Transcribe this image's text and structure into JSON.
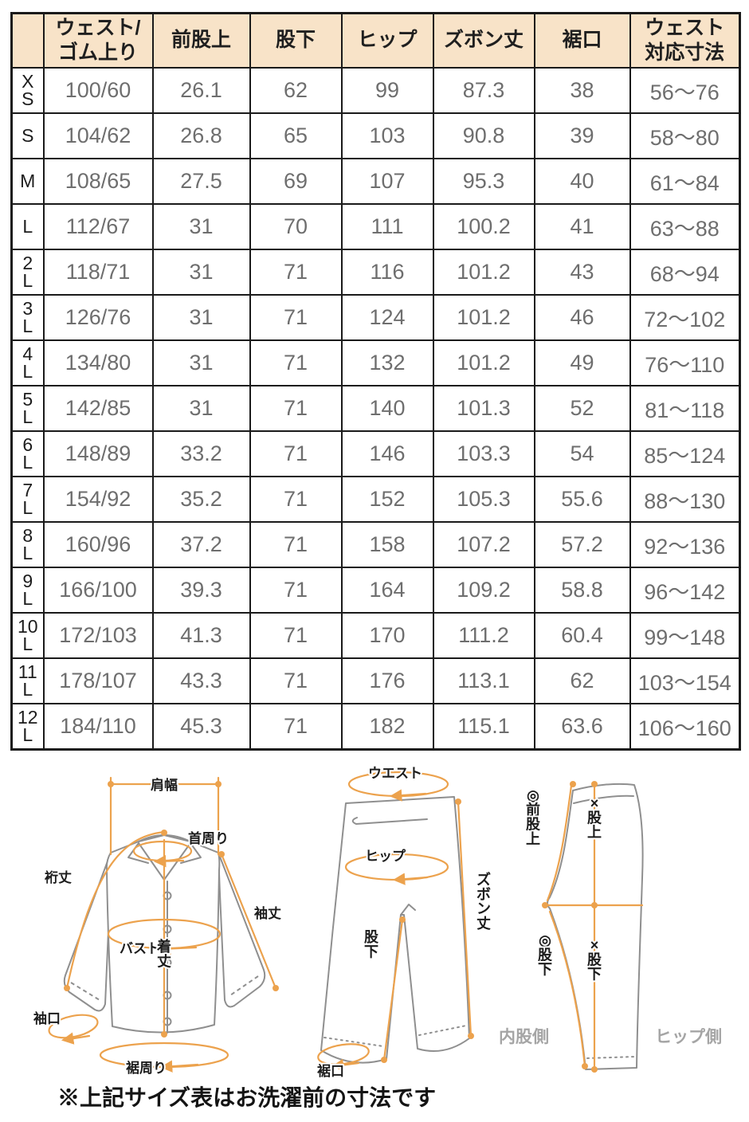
{
  "colors": {
    "header_bg": "#f8e3c8",
    "table_border": "#1a1a1a",
    "data_text": "#6e6e6e",
    "accent_orange": "#eca24d",
    "diagram_gray": "#8f8f8f",
    "side_label_gray": "#a5a5a5"
  },
  "size_table": {
    "columns": [
      "",
      "ウェスト/\nゴム上り",
      "前股上",
      "股下",
      "ヒップ",
      "ズボン丈",
      "裾口",
      "ウェスト\n対応寸法"
    ],
    "rows": [
      {
        "size": "X\nS",
        "waist_elastic": "100/60",
        "front_rise": "26.1",
        "inseam": "62",
        "hip": "99",
        "pants_length": "87.3",
        "hem_width": "38",
        "waist_range": "56〜76"
      },
      {
        "size": "S",
        "waist_elastic": "104/62",
        "front_rise": "26.8",
        "inseam": "65",
        "hip": "103",
        "pants_length": "90.8",
        "hem_width": "39",
        "waist_range": "58〜80"
      },
      {
        "size": "M",
        "waist_elastic": "108/65",
        "front_rise": "27.5",
        "inseam": "69",
        "hip": "107",
        "pants_length": "95.3",
        "hem_width": "40",
        "waist_range": "61〜84"
      },
      {
        "size": "L",
        "waist_elastic": "112/67",
        "front_rise": "31",
        "inseam": "70",
        "hip": "111",
        "pants_length": "100.2",
        "hem_width": "41",
        "waist_range": "63〜88"
      },
      {
        "size": "2\nL",
        "waist_elastic": "118/71",
        "front_rise": "31",
        "inseam": "71",
        "hip": "116",
        "pants_length": "101.2",
        "hem_width": "43",
        "waist_range": "68〜94"
      },
      {
        "size": "3\nL",
        "waist_elastic": "126/76",
        "front_rise": "31",
        "inseam": "71",
        "hip": "124",
        "pants_length": "101.2",
        "hem_width": "46",
        "waist_range": "72〜102"
      },
      {
        "size": "4\nL",
        "waist_elastic": "134/80",
        "front_rise": "31",
        "inseam": "71",
        "hip": "132",
        "pants_length": "101.2",
        "hem_width": "49",
        "waist_range": "76〜110"
      },
      {
        "size": "5\nL",
        "waist_elastic": "142/85",
        "front_rise": "31",
        "inseam": "71",
        "hip": "140",
        "pants_length": "101.3",
        "hem_width": "52",
        "waist_range": "81〜118"
      },
      {
        "size": "6\nL",
        "waist_elastic": "148/89",
        "front_rise": "33.2",
        "inseam": "71",
        "hip": "146",
        "pants_length": "103.3",
        "hem_width": "54",
        "waist_range": "85〜124"
      },
      {
        "size": "7\nL",
        "waist_elastic": "154/92",
        "front_rise": "35.2",
        "inseam": "71",
        "hip": "152",
        "pants_length": "105.3",
        "hem_width": "55.6",
        "waist_range": "88〜130"
      },
      {
        "size": "8\nL",
        "waist_elastic": "160/96",
        "front_rise": "37.2",
        "inseam": "71",
        "hip": "158",
        "pants_length": "107.2",
        "hem_width": "57.2",
        "waist_range": "92〜136"
      },
      {
        "size": "9\nL",
        "waist_elastic": "166/100",
        "front_rise": "39.3",
        "inseam": "71",
        "hip": "164",
        "pants_length": "109.2",
        "hem_width": "58.8",
        "waist_range": "96〜142"
      },
      {
        "size": "10\nL",
        "waist_elastic": "172/103",
        "front_rise": "41.3",
        "inseam": "71",
        "hip": "170",
        "pants_length": "111.2",
        "hem_width": "60.4",
        "waist_range": "99〜148"
      },
      {
        "size": "11\nL",
        "waist_elastic": "178/107",
        "front_rise": "43.3",
        "inseam": "71",
        "hip": "176",
        "pants_length": "113.1",
        "hem_width": "62",
        "waist_range": "103〜154"
      },
      {
        "size": "12\nL",
        "waist_elastic": "184/110",
        "front_rise": "45.3",
        "inseam": "71",
        "hip": "182",
        "pants_length": "115.1",
        "hem_width": "63.6",
        "waist_range": "106〜160"
      }
    ]
  },
  "diagrams": {
    "shirt": {
      "shoulder_width": "肩幅",
      "neck": "首周り",
      "yuki_length": "裄丈",
      "bust": "バスト",
      "sleeve_length": "袖丈",
      "body_length": "着丈",
      "cuff": "袖口",
      "hem_around": "裾周り"
    },
    "pants_front": {
      "waist": "ウエスト",
      "hip": "ヒップ",
      "pants_length": "ズボン丈",
      "inseam": "股下",
      "hem": "裾口"
    },
    "pants_side": {
      "front_rise": "◎前股上",
      "rise": "×股上",
      "inseam_a": "◎股下",
      "inseam_b": "×股下",
      "inner_side": "内股側",
      "hip_side": "ヒップ側"
    }
  },
  "note": "※上記サイズ表はお洗濯前の寸法です"
}
